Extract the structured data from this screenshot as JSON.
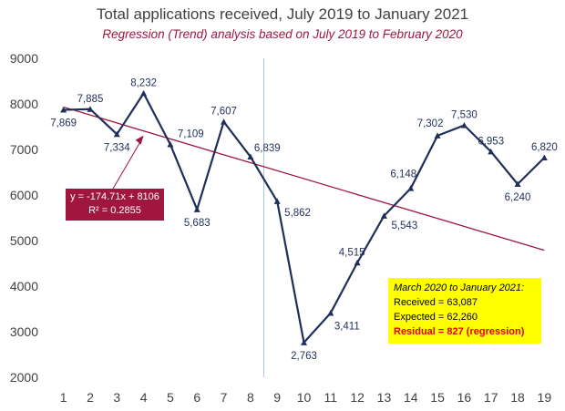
{
  "chart_data": {
    "type": "line",
    "title": "Total applications received, July 2019 to January 2021",
    "subtitle": "Regression (Trend) analysis based on July 2019 to February 2020",
    "xlabel": "",
    "ylabel": "",
    "x": [
      1,
      2,
      3,
      4,
      5,
      6,
      7,
      8,
      9,
      10,
      11,
      12,
      13,
      14,
      15,
      16,
      17,
      18,
      19
    ],
    "xlim": [
      0.5,
      19.5
    ],
    "ylim": [
      2000,
      9000
    ],
    "y_ticks": [
      2000,
      3000,
      4000,
      5000,
      6000,
      7000,
      8000,
      9000
    ],
    "grid": "none",
    "series": [
      {
        "values": [
          7869,
          7885,
          7334,
          8232,
          7109,
          5683,
          7607,
          6839,
          5862,
          2763,
          3411,
          4515,
          5543,
          6148,
          7302,
          7530,
          6953,
          6240,
          6820
        ],
        "labels": [
          "7,869",
          "7,885",
          "7,334",
          "8,232",
          "7,109",
          "5,683",
          "7,607",
          "6,839",
          "5,862",
          "2,763",
          "3,411",
          "4,515",
          "5,543",
          "6,148",
          "7,302",
          "7,530",
          "6,953",
          "6,240",
          "6,820"
        ],
        "color": "#1F2F5A"
      }
    ],
    "trendline": {
      "x_start": 1,
      "x_end": 19,
      "slope": -174.71,
      "intercept": 8106,
      "color": "#A0163E"
    },
    "vertical_marker_x": 8.5,
    "vertical_marker_color": "#A9C4E8",
    "equation_box": {
      "line1": "y = -174.71x + 8106",
      "line2": "R² = 0.2855"
    },
    "note_box": {
      "title": "March 2020 to January 2021:",
      "received": "Received = 63,087",
      "expected": "Expected = 62,260",
      "residual": "Residual = 827 (regression)"
    }
  }
}
